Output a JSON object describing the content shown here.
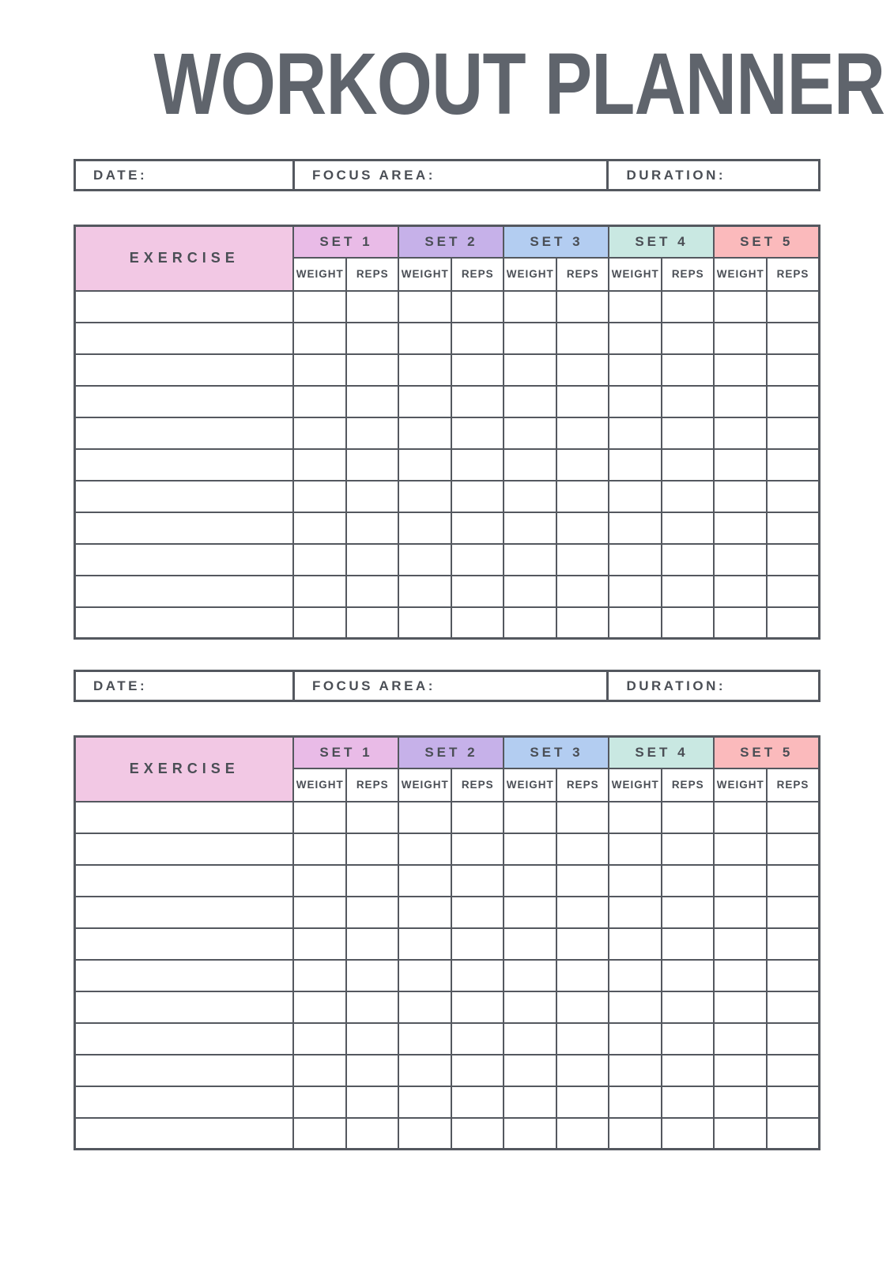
{
  "title": "WORKOUT PLANNER",
  "info_bar": {
    "date_label": "DATE:",
    "focus_area_label": "FOCUS AREA:",
    "duration_label": "DURATION:"
  },
  "table": {
    "exercise_header": "EXERCISE",
    "set_headers": [
      "SET 1",
      "SET 2",
      "SET 3",
      "SET 4",
      "SET 5"
    ],
    "weight_header": "WEIGHT",
    "reps_header": "REPS",
    "data_rows_per_table": 11
  },
  "colors": {
    "title_text": "#5f646c",
    "grid_border": "#54585f",
    "label_text": "#4a4e55",
    "exercise_header_bg": "#f2c8e4",
    "set_header_bgs": [
      "#e9bbe7",
      "#c6b1e9",
      "#b3cdf1",
      "#c9e8e2",
      "#fbbabc"
    ]
  }
}
